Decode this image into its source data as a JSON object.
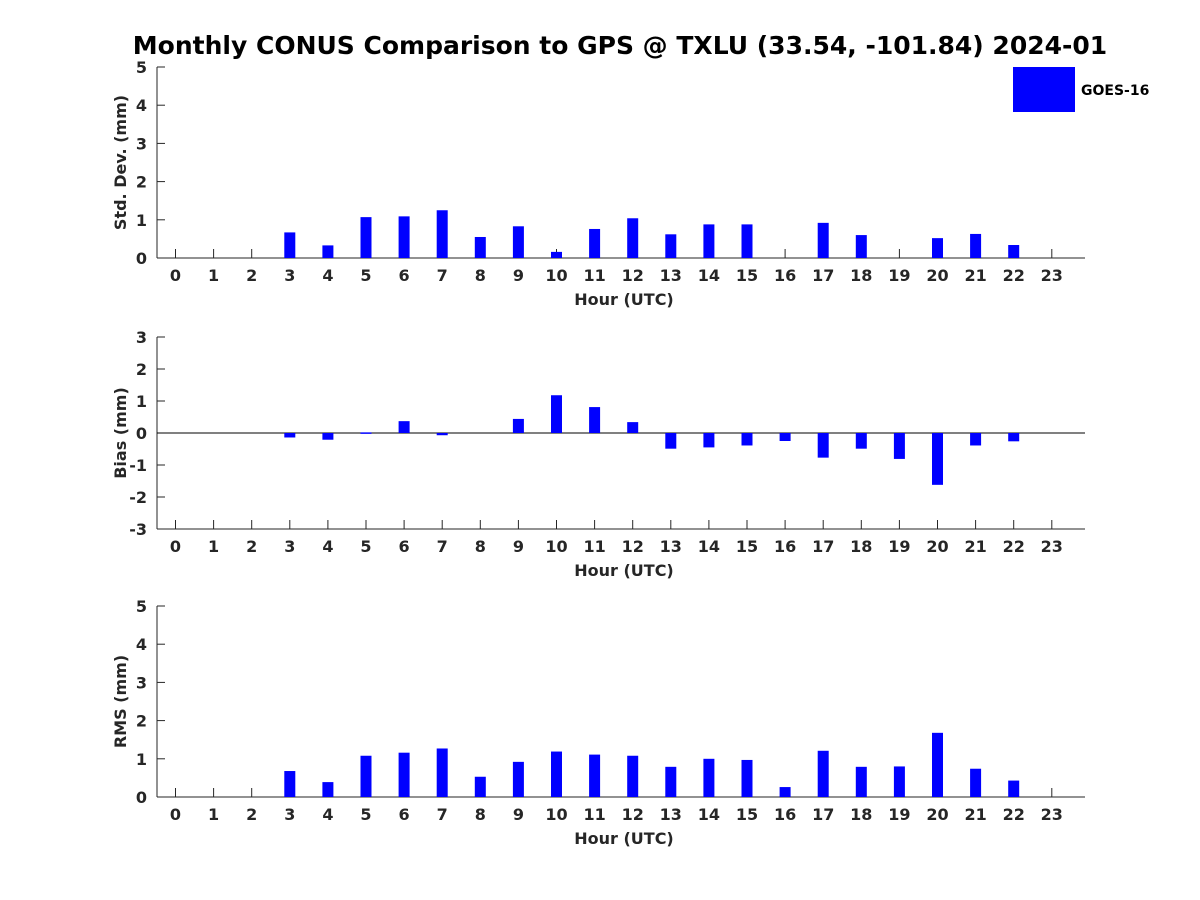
{
  "title": "Monthly CONUS Comparison to GPS @ TXLU (33.54, -101.84) 2024-01",
  "legend": {
    "label": "GOES-16",
    "color": "#0000ff",
    "placement": "top-right"
  },
  "chart_data": [
    {
      "type": "bar",
      "ylabel": "Std. Dev. (mm)",
      "xlabel": "Hour (UTC)",
      "ylim": [
        0,
        5
      ],
      "yticks": [
        "0",
        "1",
        "2",
        "3",
        "4",
        "5"
      ],
      "categories": [
        "0",
        "1",
        "2",
        "3",
        "4",
        "5",
        "6",
        "7",
        "8",
        "9",
        "10",
        "11",
        "12",
        "13",
        "14",
        "15",
        "16",
        "17",
        "18",
        "19",
        "20",
        "21",
        "22",
        "23"
      ],
      "series": [
        {
          "name": "GOES-16",
          "values": [
            null,
            null,
            null,
            0.67,
            0.33,
            1.07,
            1.09,
            1.25,
            0.55,
            0.83,
            0.16,
            0.76,
            1.04,
            0.62,
            0.88,
            0.88,
            null,
            0.92,
            0.6,
            null,
            0.52,
            0.63,
            0.34,
            null
          ]
        }
      ]
    },
    {
      "type": "bar",
      "ylabel": "Bias (mm)",
      "xlabel": "Hour (UTC)",
      "ylim": [
        -3,
        3
      ],
      "yticks": [
        "-3",
        "-2",
        "-1",
        "0",
        "1",
        "2",
        "3"
      ],
      "categories": [
        "0",
        "1",
        "2",
        "3",
        "4",
        "5",
        "6",
        "7",
        "8",
        "9",
        "10",
        "11",
        "12",
        "13",
        "14",
        "15",
        "16",
        "17",
        "18",
        "19",
        "20",
        "21",
        "22",
        "23"
      ],
      "series": [
        {
          "name": "GOES-16",
          "values": [
            null,
            null,
            null,
            -0.14,
            -0.21,
            0.02,
            0.37,
            -0.07,
            null,
            0.44,
            1.18,
            0.81,
            0.34,
            -0.49,
            -0.45,
            -0.39,
            -0.25,
            -0.77,
            -0.49,
            -0.81,
            -1.62,
            -0.39,
            -0.26,
            null
          ]
        }
      ]
    },
    {
      "type": "bar",
      "ylabel": "RMS (mm)",
      "xlabel": "Hour (UTC)",
      "ylim": [
        0,
        5
      ],
      "yticks": [
        "0",
        "1",
        "2",
        "3",
        "4",
        "5"
      ],
      "categories": [
        "0",
        "1",
        "2",
        "3",
        "4",
        "5",
        "6",
        "7",
        "8",
        "9",
        "10",
        "11",
        "12",
        "13",
        "14",
        "15",
        "16",
        "17",
        "18",
        "19",
        "20",
        "21",
        "22",
        "23"
      ],
      "series": [
        {
          "name": "GOES-16",
          "values": [
            null,
            null,
            null,
            0.68,
            0.39,
            1.08,
            1.16,
            1.27,
            0.53,
            0.92,
            1.19,
            1.11,
            1.08,
            0.79,
            1.0,
            0.97,
            0.26,
            1.21,
            0.79,
            0.8,
            1.68,
            0.74,
            0.43,
            null
          ]
        }
      ]
    }
  ]
}
